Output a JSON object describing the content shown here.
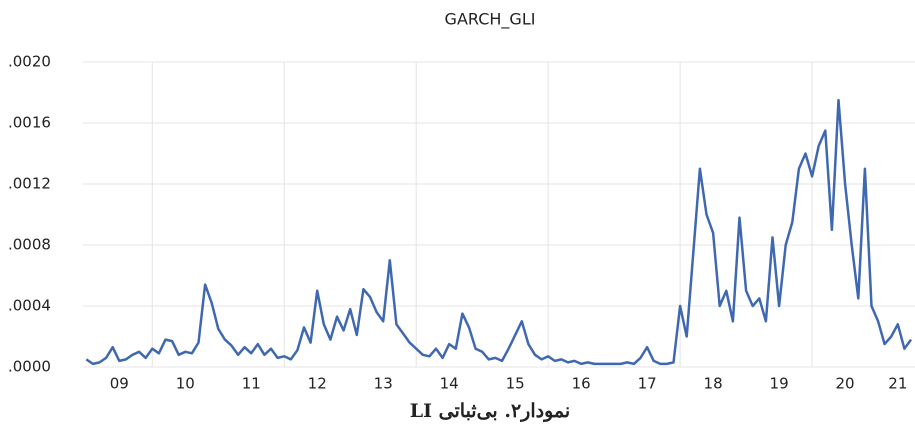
{
  "chart_data": {
    "type": "line",
    "title": "GARCH_GLI",
    "caption": "نمودار۲. بی‌ثباتی LI",
    "x": [
      9.0,
      9.1,
      9.2,
      9.3,
      9.4,
      9.5,
      9.6,
      9.7,
      9.8,
      9.9,
      10.0,
      10.1,
      10.2,
      10.3,
      10.4,
      10.5,
      10.6,
      10.7,
      10.8,
      10.9,
      11.0,
      11.1,
      11.2,
      11.3,
      11.4,
      11.5,
      11.6,
      11.7,
      11.8,
      11.9,
      12.0,
      12.1,
      12.2,
      12.3,
      12.4,
      12.5,
      12.6,
      12.7,
      12.8,
      12.9,
      13.0,
      13.1,
      13.2,
      13.3,
      13.4,
      13.5,
      13.6,
      13.7,
      13.8,
      13.9,
      14.0,
      14.1,
      14.2,
      14.3,
      14.4,
      14.5,
      14.6,
      14.7,
      14.8,
      14.9,
      15.0,
      15.1,
      15.2,
      15.3,
      15.4,
      15.5,
      15.6,
      15.7,
      15.8,
      15.9,
      16.0,
      16.1,
      16.2,
      16.3,
      16.4,
      16.5,
      16.6,
      16.7,
      16.8,
      16.9,
      17.0,
      17.1,
      17.2,
      17.3,
      17.4,
      17.5,
      17.6,
      17.7,
      17.8,
      17.9,
      18.0,
      18.1,
      18.2,
      18.3,
      18.4,
      18.5,
      18.6,
      18.7,
      18.8,
      18.9,
      19.0,
      19.1,
      19.2,
      19.3,
      19.4,
      19.5,
      19.6,
      19.7,
      19.8,
      19.9,
      20.0,
      20.1,
      20.2,
      20.3,
      20.4,
      20.5,
      20.6,
      20.7,
      20.8,
      20.9,
      21.0,
      21.1,
      21.2,
      21.3,
      21.4,
      21.5
    ],
    "series": [
      {
        "name": "GARCH_GLI",
        "color": "#3f68b1",
        "values": [
          5e-05,
          2e-05,
          3e-05,
          6e-05,
          0.00013,
          4e-05,
          5e-05,
          8e-05,
          0.0001,
          6e-05,
          0.00012,
          9e-05,
          0.00018,
          0.00017,
          8e-05,
          0.0001,
          9e-05,
          0.00016,
          0.00054,
          0.00042,
          0.00025,
          0.00018,
          0.00014,
          8e-05,
          0.00013,
          9e-05,
          0.00015,
          8e-05,
          0.00012,
          6e-05,
          7e-05,
          5e-05,
          0.00011,
          0.00026,
          0.00016,
          0.0005,
          0.00028,
          0.00018,
          0.00033,
          0.00024,
          0.00038,
          0.00021,
          0.00051,
          0.00046,
          0.00036,
          0.0003,
          0.0007,
          0.00028,
          0.00022,
          0.00016,
          0.00012,
          8e-05,
          7e-05,
          0.00012,
          6e-05,
          0.00015,
          0.00012,
          0.00035,
          0.00026,
          0.00012,
          0.0001,
          5e-05,
          6e-05,
          4e-05,
          0.00012,
          0.00021,
          0.0003,
          0.00015,
          8e-05,
          5e-05,
          7e-05,
          4e-05,
          5e-05,
          3e-05,
          4e-05,
          2e-05,
          3e-05,
          2e-05,
          2e-05,
          2e-05,
          2e-05,
          2e-05,
          3e-05,
          2e-05,
          6e-05,
          0.00013,
          4e-05,
          2e-05,
          2e-05,
          3e-05,
          0.0004,
          0.0002,
          0.00075,
          0.0013,
          0.001,
          0.00088,
          0.0004,
          0.0005,
          0.0003,
          0.00098,
          0.0005,
          0.0004,
          0.00045,
          0.0003,
          0.00085,
          0.0004,
          0.0008,
          0.00095,
          0.0013,
          0.0014,
          0.00125,
          0.00145,
          0.00155,
          0.0009,
          0.00175,
          0.0012,
          0.0008,
          0.00045,
          0.0013,
          0.0004,
          0.0003,
          0.00015,
          0.0002,
          0.00028,
          0.00012,
          0.00018
        ]
      }
    ],
    "xlim": [
      8.95,
      21.56
    ],
    "xticks": [
      {
        "value": 9.5,
        "label": "09"
      },
      {
        "value": 10.5,
        "label": "10"
      },
      {
        "value": 11.5,
        "label": "11"
      },
      {
        "value": 12.5,
        "label": "12"
      },
      {
        "value": 13.5,
        "label": "13"
      },
      {
        "value": 14.5,
        "label": "14"
      },
      {
        "value": 15.5,
        "label": "15"
      },
      {
        "value": 16.5,
        "label": "16"
      },
      {
        "value": 17.5,
        "label": "17"
      },
      {
        "value": 18.5,
        "label": "18"
      },
      {
        "value": 19.5,
        "label": "19"
      },
      {
        "value": 20.5,
        "label": "20"
      },
      {
        "value": 21.3,
        "label": "21"
      }
    ],
    "xgrid": [
      10,
      12,
      14,
      16,
      18,
      20
    ],
    "ylim": [
      0,
      0.002
    ],
    "yticks": [
      {
        "value": 0,
        "label": ".0000"
      },
      {
        "value": 0.0004,
        "label": ".0004"
      },
      {
        "value": 0.0008,
        "label": ".0008"
      },
      {
        "value": 0.0012,
        "label": ".0012"
      },
      {
        "value": 0.0016,
        "label": ".0016"
      },
      {
        "value": 0.002,
        "label": ".0020"
      }
    ],
    "grid": true
  }
}
